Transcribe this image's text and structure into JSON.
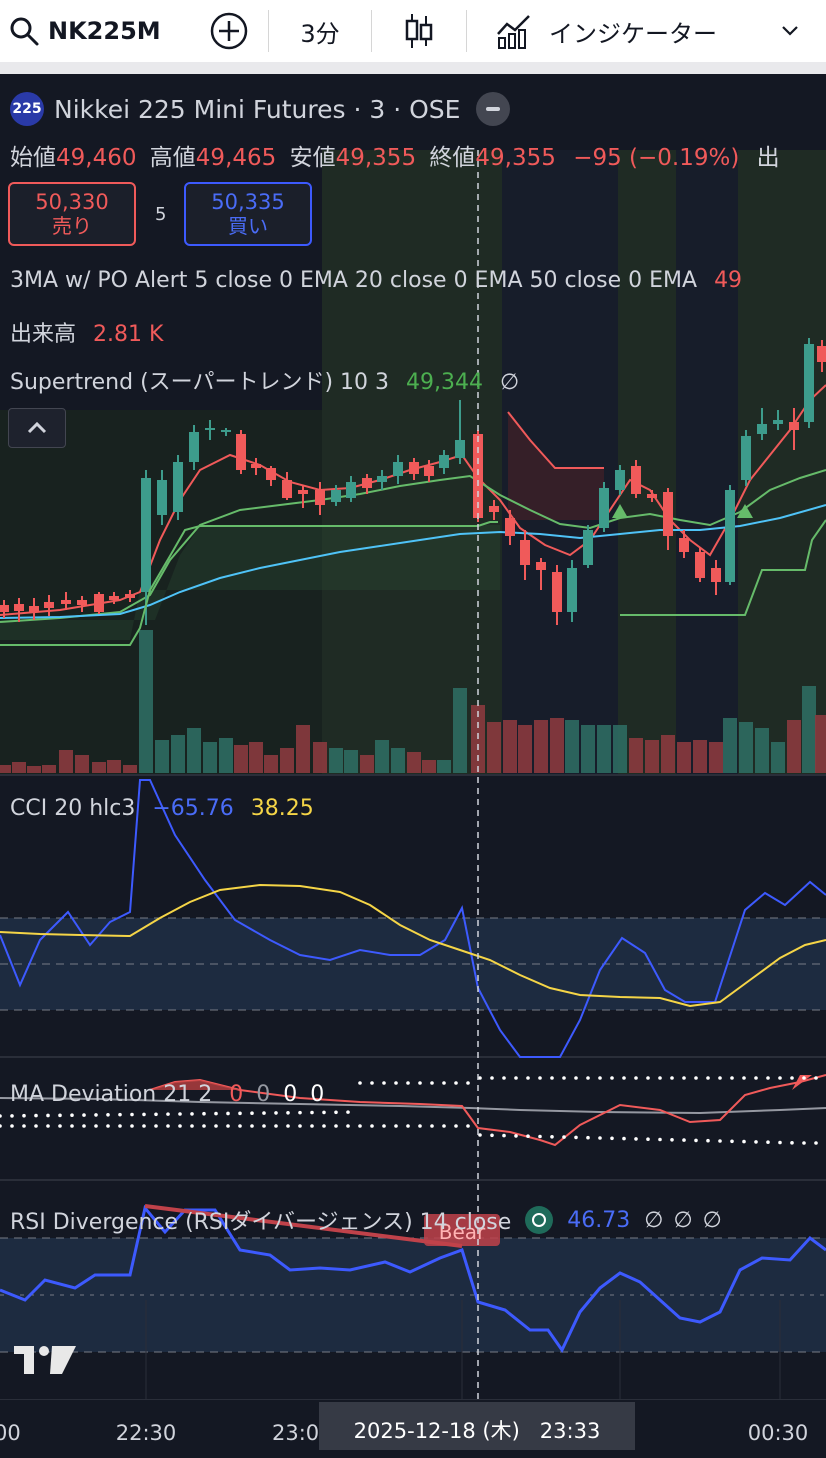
{
  "toolbar": {
    "symbol": "NK225M",
    "interval": "3分",
    "indicators_label": "インジケーター"
  },
  "header": {
    "title": "Nikkei 225 Mini Futures · 3 · OSE",
    "badge": "225",
    "ohlc": {
      "open_label": "始値",
      "open": "49,460",
      "high_label": "高値",
      "high": "49,465",
      "low_label": "安値",
      "low": "49,355",
      "close_label": "終値",
      "close": "49,355",
      "change": "−95 (−0.19%)",
      "more": "出"
    },
    "sell": {
      "price": "50,330",
      "label": "売り"
    },
    "spread": "5",
    "buy": {
      "price": "50,335",
      "label": "買い"
    }
  },
  "legends": {
    "ma_alert": "3MA w/ PO Alert 5 close 0 EMA 20 close 0 EMA 50 close 0 EMA",
    "ma_alert_value": "49",
    "volume_label": "出来高",
    "volume_value": "2.81 K",
    "supertrend_label": "Supertrend (スーパートレンド) 10 3",
    "supertrend_value": "49,344",
    "cci_label": "CCI 20 hlc3",
    "cci_value": "−65.76",
    "cci_ma_value": "38.25",
    "ma_dev_label": "MA Deviation 21 2",
    "ma_dev_values": [
      "0",
      "0",
      "0",
      "0"
    ],
    "rsi_label": "RSI Divergence (RSIダイバージェンス) 14 close",
    "rsi_value": "46.73",
    "bear_label": "Bear"
  },
  "time_axis": {
    "ticks": [
      "00",
      "22:30",
      "23:0",
      "00:30"
    ],
    "crosshair_label": "2025-12-18 (木)   23:33"
  },
  "colors": {
    "up": "#3d9c8c",
    "down": "#f05a5a",
    "ema_fast": "#f05a5a",
    "ema_mid": "#66bb6a",
    "ema_slow": "#4fc3f7",
    "cci": "#3d5afe",
    "cci_ma": "#f5d547",
    "rsi": "#3d5afe"
  }
}
